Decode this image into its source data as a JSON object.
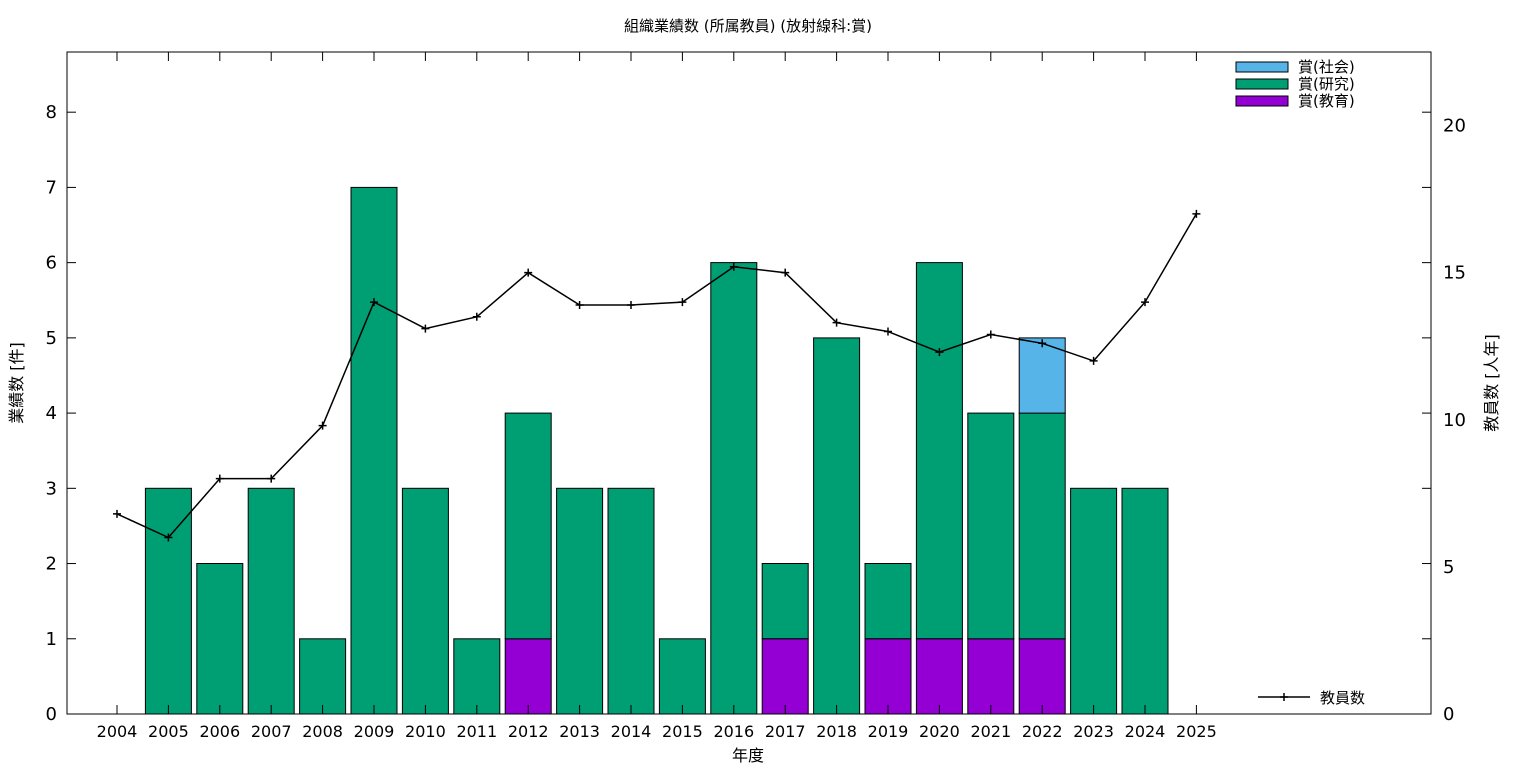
{
  "chart_data": {
    "type": "bar",
    "title": "組織業績数 (所属教員) (放射線科:賞)",
    "xlabel": "年度",
    "ylabel": "業績数 [件]",
    "y2label": "教員数 [人年]",
    "categories": [
      "2004",
      "2005",
      "2006",
      "2007",
      "2008",
      "2009",
      "2010",
      "2011",
      "2012",
      "2013",
      "2014",
      "2015",
      "2016",
      "2017",
      "2018",
      "2019",
      "2020",
      "2021",
      "2022",
      "2023",
      "2024",
      "2025"
    ],
    "ylim": [
      0,
      8.8
    ],
    "y2lim": [
      0,
      22.5
    ],
    "yticks": [
      0,
      1,
      2,
      3,
      4,
      5,
      6,
      7,
      8
    ],
    "y2ticks": [
      0,
      5,
      10,
      15,
      20
    ],
    "stacked": true,
    "series": [
      {
        "name": "賞(教育)",
        "color": "#9400d3",
        "values": [
          0,
          0,
          0,
          0,
          0,
          0,
          0,
          0,
          1,
          0,
          0,
          0,
          0,
          1,
          0,
          1,
          1,
          1,
          1,
          0,
          0,
          0
        ]
      },
      {
        "name": "賞(研究)",
        "color": "#009e73",
        "values": [
          0,
          3,
          2,
          3,
          1,
          7,
          3,
          1,
          3,
          3,
          3,
          1,
          6,
          1,
          5,
          1,
          5,
          3,
          3,
          3,
          3,
          0
        ]
      },
      {
        "name": "賞(社会)",
        "color": "#56b4e9",
        "values": [
          0,
          0,
          0,
          0,
          0,
          0,
          0,
          0,
          0,
          0,
          0,
          0,
          0,
          0,
          0,
          0,
          0,
          0,
          1,
          0,
          0,
          0
        ]
      }
    ],
    "line_series": {
      "name": "教員数",
      "axis": "right",
      "color": "#000000",
      "values": [
        6.8,
        6.0,
        8.0,
        8.0,
        9.8,
        14.0,
        13.1,
        13.5,
        15.0,
        13.9,
        13.9,
        14.0,
        15.2,
        15.0,
        13.3,
        13.0,
        12.3,
        12.9,
        12.6,
        12.0,
        14.0,
        17.0
      ]
    },
    "legend_position": "top-right",
    "grid": false
  }
}
